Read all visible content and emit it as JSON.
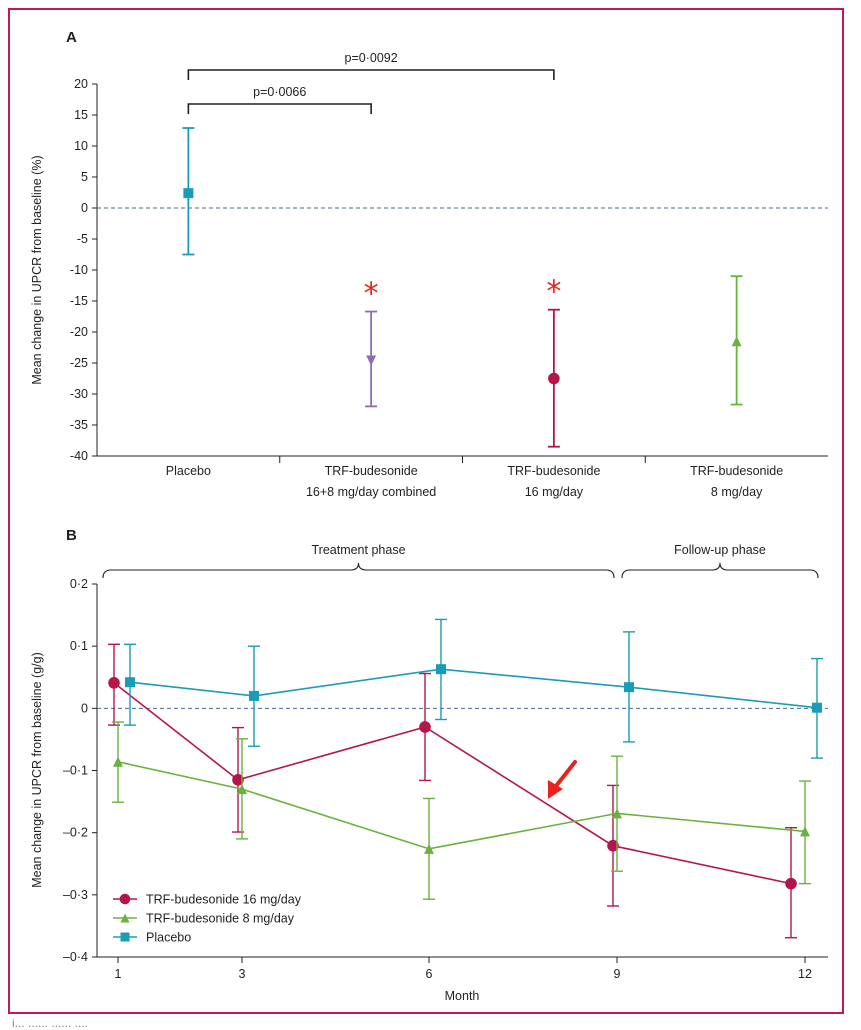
{
  "chart_data": [
    {
      "panel": "A",
      "type": "scatter",
      "ylabel": "Mean change in UPCR from baseline (%)",
      "ylim": [
        -40,
        20
      ],
      "yticks": [
        20,
        15,
        10,
        5,
        0,
        -5,
        -10,
        -15,
        -20,
        -25,
        -30,
        -35,
        -40
      ],
      "categories": [
        [
          "Placebo"
        ],
        [
          "TRF-budesonide",
          "16+8 mg/day combined"
        ],
        [
          "TRF-budesonide",
          "16 mg/day"
        ],
        [
          "TRF-budesonide",
          "8 mg/day"
        ]
      ],
      "points": [
        {
          "value": 2.4,
          "lower": -7.5,
          "upper": 12.9,
          "marker": "square",
          "color": "#1a9bb8",
          "star": ""
        },
        {
          "value": -24.6,
          "lower": -32.0,
          "upper": -16.7,
          "marker": "triangle-down",
          "color": "#8e6bb6",
          "star": "*"
        },
        {
          "value": -27.5,
          "lower": -38.5,
          "upper": -16.4,
          "marker": "circle",
          "color": "#b5164a",
          "star": "*"
        },
        {
          "value": -21.5,
          "lower": -31.7,
          "upper": -11.0,
          "marker": "triangle-up",
          "color": "#6ab23e",
          "star": ""
        }
      ],
      "comparisons": [
        {
          "from": 0,
          "to": 2,
          "label": "p=0·0092"
        },
        {
          "from": 0,
          "to": 1,
          "label": "p=0·0066"
        }
      ],
      "reference_line": 0
    },
    {
      "panel": "B",
      "type": "line",
      "xlabel": "Month",
      "ylabel": "Mean change in UPCR from baseline (g/g)",
      "xticks": [
        "1",
        "3",
        "6",
        "9",
        "12"
      ],
      "ylim": [
        -0.4,
        0.2
      ],
      "yticks": [
        "0·2",
        "0·1",
        "0",
        "–0·1",
        "–0·2",
        "–0·3",
        "–0·4"
      ],
      "phases": [
        {
          "label": "Treatment phase",
          "from": 1,
          "to": 9
        },
        {
          "label": "Follow-up phase",
          "from": 9,
          "to": 12
        }
      ],
      "series": [
        {
          "name": "TRF-budesonide 16 mg/day",
          "marker": "circle",
          "color": "#b5164a",
          "x": [
            1,
            3,
            6,
            9,
            12
          ],
          "values": [
            0.041,
            -0.115,
            -0.03,
            -0.221,
            -0.282
          ],
          "lower": [
            -0.027,
            -0.199,
            -0.116,
            -0.318,
            -0.369
          ],
          "upper": [
            0.103,
            -0.031,
            0.056,
            -0.124,
            -0.192
          ]
        },
        {
          "name": "TRF-budesonide 8 mg/day",
          "marker": "triangle",
          "color": "#6ab23e",
          "x": [
            1,
            3,
            6,
            9,
            12
          ],
          "values": [
            -0.086,
            -0.13,
            -0.226,
            -0.169,
            -0.198
          ],
          "lower": [
            -0.151,
            -0.21,
            -0.307,
            -0.262,
            -0.282
          ],
          "upper": [
            -0.022,
            -0.049,
            -0.145,
            -0.077,
            -0.117
          ]
        },
        {
          "name": "Placebo",
          "marker": "square",
          "color": "#1a9bb8",
          "x": [
            1,
            3,
            6,
            9,
            12
          ],
          "values": [
            0.042,
            0.02,
            0.063,
            0.034,
            0.001
          ],
          "lower": [
            -0.027,
            -0.061,
            -0.018,
            -0.054,
            -0.08
          ],
          "upper": [
            0.103,
            0.1,
            0.143,
            0.123,
            0.08
          ]
        }
      ],
      "reference_line": 0,
      "annotation": {
        "type": "arrow",
        "color": "#e8231e"
      }
    }
  ],
  "footer_text": "i... ...... ...... ...."
}
